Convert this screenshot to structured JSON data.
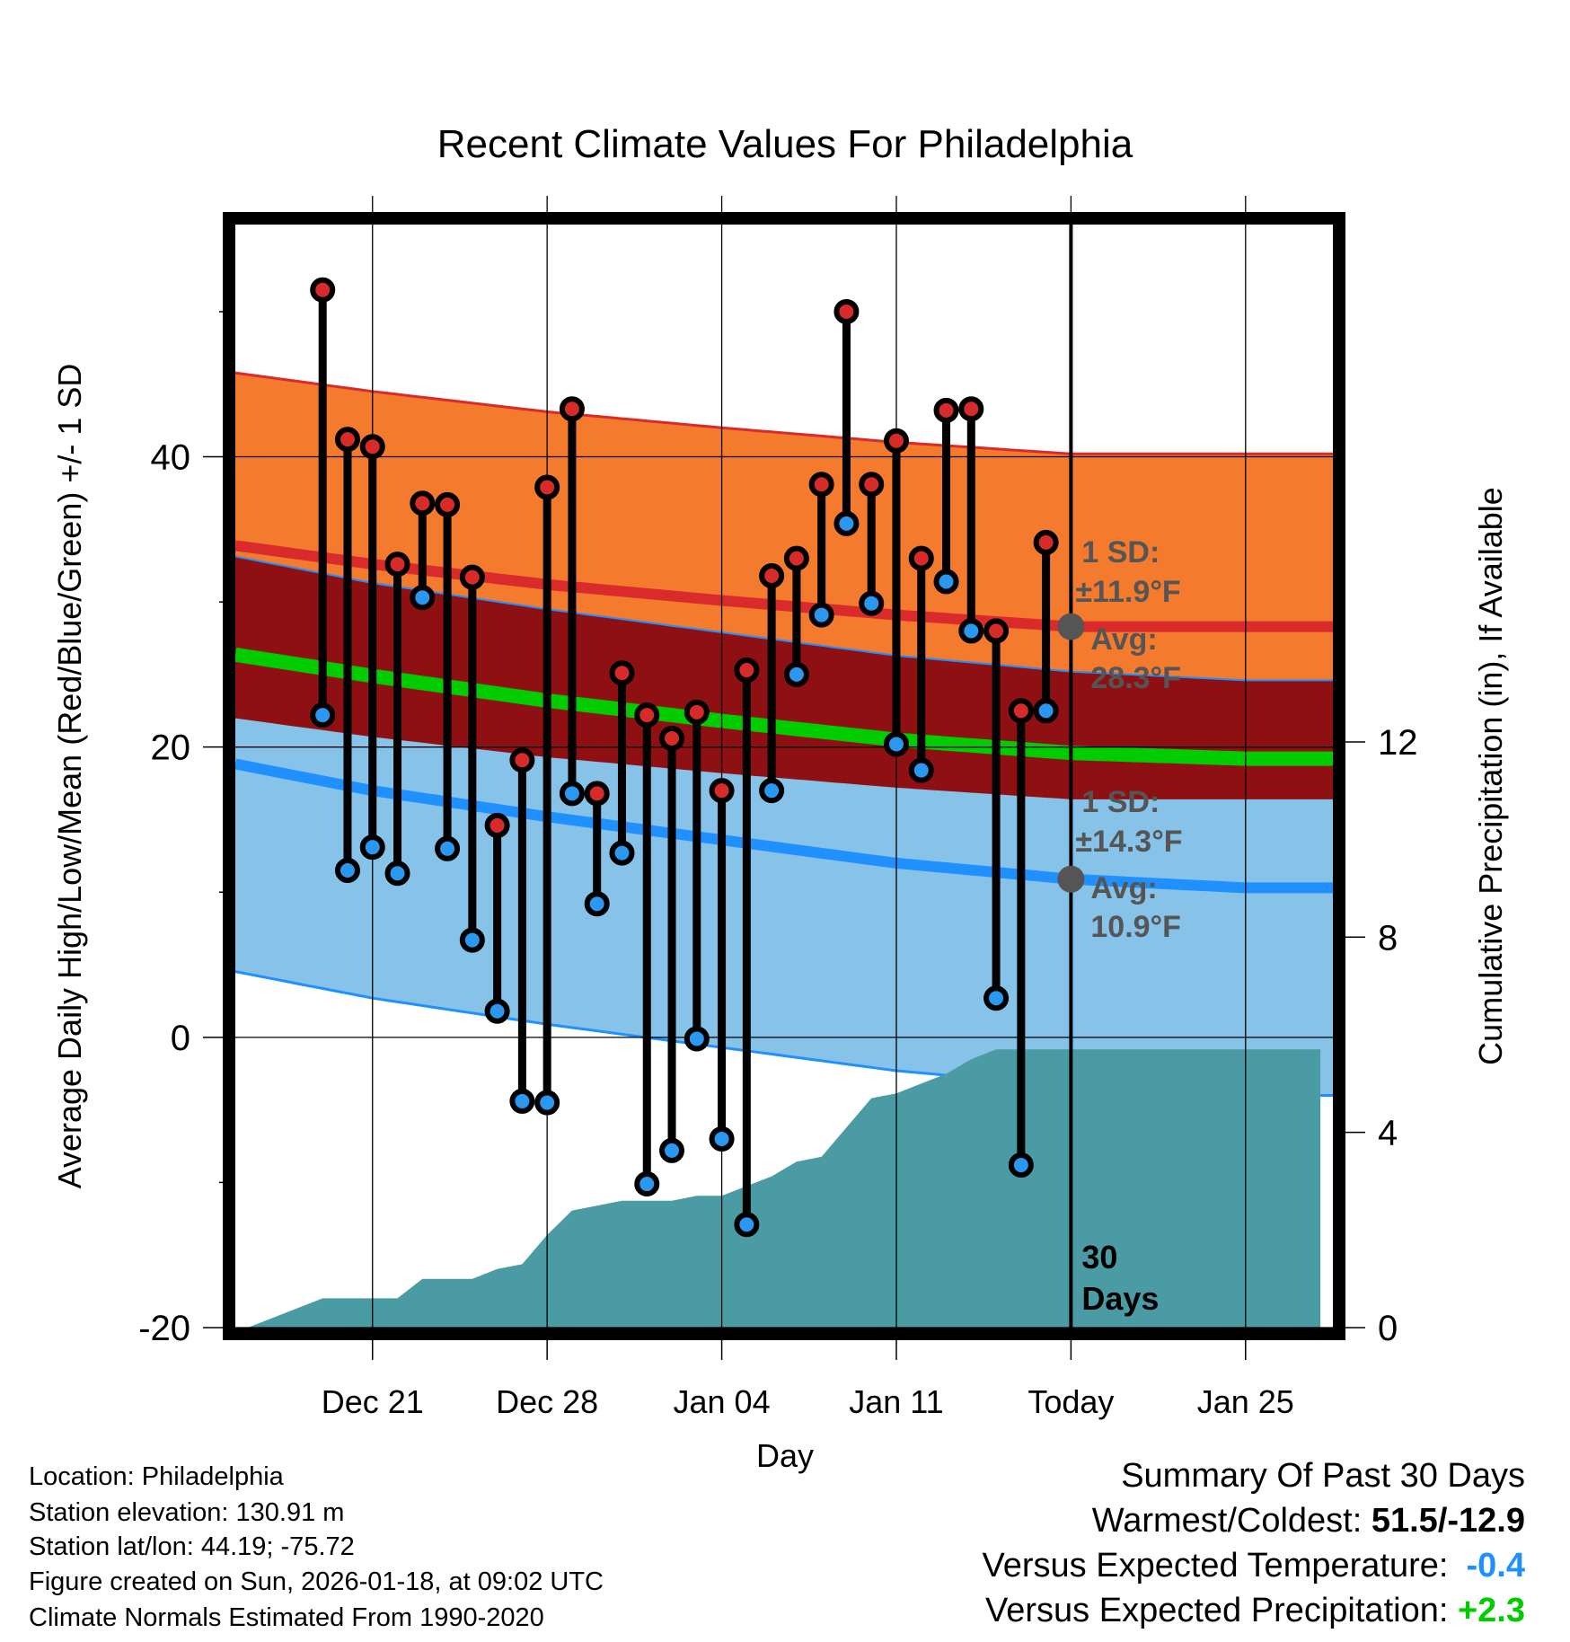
{
  "chart_data": {
    "type": "line",
    "title": "Recent Climate Values For Philadelphia",
    "xlabel": "Day",
    "ylabel_left": "Average Daily High/Low/Mean (Red/Blue/Green) +/- 1 SD",
    "ylabel_right": "Cumulative Precipitation (in), If Available",
    "x_range_days": [
      -33.5,
      10.5
    ],
    "ylim": [
      -20,
      56
    ],
    "y2lim": [
      0,
      22.6
    ],
    "x_ticks": [
      {
        "label": "Dec 21",
        "day": -28
      },
      {
        "label": "Dec 28",
        "day": -21
      },
      {
        "label": "Jan 04",
        "day": -14
      },
      {
        "label": "Jan 11",
        "day": -7
      },
      {
        "label": "Today",
        "day": 0
      },
      {
        "label": "Jan 25",
        "day": 7
      }
    ],
    "y_ticks": [
      -20,
      0,
      20,
      40
    ],
    "y2_ticks": [
      0,
      4,
      8,
      12
    ],
    "daily": [
      {
        "day": -30,
        "high": 51.5,
        "low": 22.2
      },
      {
        "day": -29,
        "high": 41.2,
        "low": 11.5
      },
      {
        "day": -28,
        "high": 40.7,
        "low": 13.1
      },
      {
        "day": -27,
        "high": 32.6,
        "low": 11.3
      },
      {
        "day": -26,
        "high": 36.8,
        "low": 30.3
      },
      {
        "day": -25,
        "high": 36.7,
        "low": 13.0
      },
      {
        "day": -24,
        "high": 31.7,
        "low": 6.7
      },
      {
        "day": -23,
        "high": 14.6,
        "low": 1.8
      },
      {
        "day": -22,
        "high": 19.1,
        "low": -4.4
      },
      {
        "day": -21,
        "high": 37.9,
        "low": -4.5
      },
      {
        "day": -20,
        "high": 43.3,
        "low": 16.8
      },
      {
        "day": -19,
        "high": 16.8,
        "low": 9.2
      },
      {
        "day": -18,
        "high": 25.1,
        "low": 12.7
      },
      {
        "day": -17,
        "high": 22.2,
        "low": -10.1
      },
      {
        "day": -16,
        "high": 20.6,
        "low": -7.8
      },
      {
        "day": -15,
        "high": 22.4,
        "low": -0.1
      },
      {
        "day": -14,
        "high": 17.0,
        "low": -7.0
      },
      {
        "day": -13,
        "high": 25.3,
        "low": -12.9
      },
      {
        "day": -12,
        "high": 31.8,
        "low": 17.0
      },
      {
        "day": -11,
        "high": 33.0,
        "low": 25.0
      },
      {
        "day": -10,
        "high": 38.1,
        "low": 29.1
      },
      {
        "day": -9,
        "high": 50.0,
        "low": 35.4
      },
      {
        "day": -8,
        "high": 38.1,
        "low": 29.9
      },
      {
        "day": -7,
        "high": 41.1,
        "low": 20.2
      },
      {
        "day": -6,
        "high": 33.0,
        "low": 18.4
      },
      {
        "day": -5,
        "high": 43.2,
        "low": 31.4
      },
      {
        "day": -4,
        "high": 43.3,
        "low": 28.0
      },
      {
        "day": -3,
        "high": 28.0,
        "low": 2.7
      },
      {
        "day": -2,
        "high": 22.5,
        "low": -8.8
      },
      {
        "day": -1,
        "high": 34.1,
        "low": 22.5
      }
    ],
    "normals": {
      "day": [
        -34,
        -28,
        -21,
        -14,
        -7,
        0,
        7,
        10
      ],
      "high_avg": [
        34.0,
        32.6,
        31.2,
        30.1,
        29.1,
        28.3,
        28.3,
        28.3
      ],
      "high_sd": [
        11.9,
        11.9,
        11.9,
        11.9,
        11.9,
        11.9,
        11.9,
        11.9
      ],
      "low_avg": [
        19.0,
        17.0,
        15.2,
        13.6,
        12.0,
        10.9,
        10.3,
        10.3
      ],
      "low_sd": [
        14.3,
        14.3,
        14.3,
        14.3,
        14.3,
        14.3,
        14.3,
        14.3
      ],
      "mean_avg": [
        26.5,
        24.9,
        23.2,
        21.8,
        20.5,
        19.6,
        19.2,
        19.2
      ]
    },
    "precip_cumulative": {
      "day": [
        -34,
        -33,
        -30,
        -29,
        -28,
        -27,
        -26,
        -25,
        -24,
        -23,
        -22,
        -21,
        -20,
        -19,
        -18,
        -17,
        -16,
        -15,
        -14,
        -13,
        -12,
        -11,
        -10,
        -9,
        -8,
        -7,
        -6,
        -5,
        -4,
        -3,
        -2,
        -1,
        0,
        10
      ],
      "inches": [
        0.0,
        0.0,
        0.6,
        0.6,
        0.6,
        0.6,
        1.0,
        1.0,
        1.0,
        1.2,
        1.3,
        1.9,
        2.4,
        2.5,
        2.6,
        2.6,
        2.6,
        2.7,
        2.7,
        2.9,
        3.1,
        3.4,
        3.5,
        4.1,
        4.7,
        4.8,
        5.0,
        5.2,
        5.5,
        5.7,
        5.7,
        5.7,
        5.7,
        5.7
      ]
    },
    "annotations": {
      "high_sd_label": "1 SD:",
      "high_sd_value": "±11.9°F",
      "high_avg_label": "Avg:",
      "high_avg_value": "28.3°F",
      "low_sd_label": "1 SD:",
      "low_sd_value": "±14.3°F",
      "low_avg_label": "Avg:",
      "low_avg_value": "10.9°F",
      "days_number": "30",
      "days_word": "Days"
    },
    "colors": {
      "high_band": "#f47a2e",
      "overlap_band": "#8f1013",
      "low_band": "#87c3e8",
      "mean_line": "#00cc00",
      "high_line": "#d92b2b",
      "low_line": "#2090ff",
      "precip": "#4a9ba3",
      "high_marker": "#d72a2a",
      "low_marker": "#2a98f0",
      "annotation": "#555555"
    }
  },
  "info": {
    "location": "Location: Philadelphia",
    "elevation": "Station elevation: 130.91 m",
    "latlon": "Station lat/lon: 44.19; -75.72",
    "created": "Figure created on Sun, 2026-01-18, at 09:02 UTC",
    "normals": "Climate Normals Estimated From 1990-2020"
  },
  "summary": {
    "title": "Summary Of Past 30 Days",
    "warm_cold_label": "Warmest/Coldest:",
    "warm_cold_value": "51.5/-12.9",
    "temp_label": "Versus Expected Temperature:",
    "temp_value": "-0.4",
    "prcp_label": "Versus Expected Precipitation:",
    "prcp_value": "+2.3"
  }
}
